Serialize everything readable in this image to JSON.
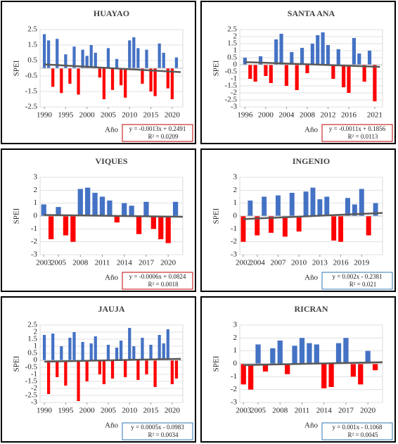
{
  "chart_data": [
    {
      "type": "bar",
      "title": "HUAYAO",
      "y_label": "SPEI",
      "x_label": "Año",
      "x": [
        1990,
        1991,
        1992,
        1993,
        1994,
        1995,
        1996,
        1997,
        1998,
        1999,
        2000,
        2001,
        2002,
        2003,
        2004,
        2005,
        2006,
        2007,
        2008,
        2009,
        2010,
        2011,
        2012,
        2013,
        2014,
        2015,
        2016,
        2017,
        2018,
        2019,
        2020,
        2021
      ],
      "values": [
        2.2,
        1.8,
        -1.2,
        1.9,
        -1.6,
        0.9,
        -1.0,
        1.4,
        -1.7,
        1.2,
        0.8,
        1.5,
        1.0,
        -0.6,
        -2.0,
        1.3,
        -1.4,
        0.6,
        -1.1,
        -1.9,
        1.8,
        2.0,
        1.3,
        -1.0,
        1.2,
        -1.5,
        -1.8,
        1.6,
        1.0,
        -1.3,
        -2.0,
        0.7
      ],
      "xlim": [
        1989,
        2022.5
      ],
      "xticks": [
        1990,
        1995,
        2000,
        2005,
        2010,
        2015,
        2020
      ],
      "ylim": [
        -2.5,
        2.5
      ],
      "yticks": [
        -2.5,
        -1.5,
        -0.5,
        0.5,
        1.5,
        2.5
      ],
      "grid": true,
      "color_positive": "#4472c4",
      "color_negative": "#ff0000",
      "trend": {
        "x": [
          1990,
          2022
        ],
        "values": [
          0.25,
          -0.25
        ],
        "color": "#595959"
      },
      "equation": "y = -0.0013x + 0.2491",
      "r2": "R² = 0.0209",
      "annotation_border": "#c00000"
    },
    {
      "type": "bar",
      "title": "SANTA ANA",
      "y_label": "SPEI",
      "x_label": "Año",
      "x": [
        1996,
        1997,
        1998,
        1999,
        2000,
        2001,
        2002,
        2003,
        2004,
        2005,
        2006,
        2007,
        2008,
        2009,
        2010,
        2011,
        2012,
        2013,
        2014,
        2015,
        2016,
        2017,
        2018,
        2019,
        2020,
        2021
      ],
      "values": [
        0.5,
        -1.0,
        -1.2,
        0.6,
        -0.8,
        -1.3,
        1.8,
        2.2,
        -1.5,
        0.9,
        -1.8,
        1.2,
        -0.6,
        1.5,
        2.1,
        2.3,
        1.4,
        -1.0,
        1.1,
        -1.6,
        -2.0,
        1.9,
        0.8,
        -1.2,
        1.0,
        -2.6
      ],
      "xlim": [
        1995,
        2022.5
      ],
      "xticks": [
        1996,
        2000,
        2004,
        2008,
        2012,
        2016,
        2021
      ],
      "ylim": [
        -3,
        2.5
      ],
      "yticks": [
        -3,
        -2.5,
        -2,
        -1.5,
        -1,
        -0.5,
        0,
        0.5,
        1,
        1.5,
        2,
        2.5
      ],
      "grid": true,
      "color_positive": "#4472c4",
      "color_negative": "#ff0000",
      "trend": {
        "x": [
          1996,
          2022
        ],
        "values": [
          0.19,
          -0.15
        ],
        "color": "#595959"
      },
      "equation": "y = -0.0011x + 0.1856",
      "r2": "R² = 0.0113",
      "annotation_border": "#c00000"
    },
    {
      "type": "bar",
      "title": "VIQUES",
      "y_label": "SPEI",
      "x_label": "Año",
      "x": [
        2003,
        2004,
        2005,
        2006,
        2007,
        2008,
        2009,
        2010,
        2011,
        2012,
        2013,
        2014,
        2015,
        2016,
        2017,
        2018,
        2019,
        2020,
        2021
      ],
      "values": [
        0.9,
        -1.8,
        0.7,
        -1.5,
        -2.0,
        2.1,
        2.2,
        1.8,
        1.5,
        1.2,
        -0.5,
        1.0,
        0.8,
        -1.4,
        1.1,
        -1.0,
        -1.8,
        -2.1,
        1.1
      ],
      "xlim": [
        2002.5,
        2022
      ],
      "xticks": [
        2003,
        2005,
        2008,
        2011,
        2014,
        2017,
        2020
      ],
      "ylim": [
        -3,
        3
      ],
      "yticks": [
        -3,
        -2,
        -1,
        0,
        1,
        2,
        3
      ],
      "grid": true,
      "color_positive": "#4472c4",
      "color_negative": "#ff0000",
      "trend": {
        "x": [
          2003,
          2022
        ],
        "values": [
          0.08,
          -0.06
        ],
        "color": "#595959"
      },
      "equation": "y = -0.0006x + 0.0824",
      "r2": "R² = 0.0018",
      "annotation_border": "#c00000"
    },
    {
      "type": "bar",
      "title": "INGENIO",
      "y_label": "SPEI",
      "x_label": "Año",
      "x": [
        2002,
        2003,
        2004,
        2005,
        2006,
        2007,
        2008,
        2009,
        2010,
        2011,
        2012,
        2013,
        2014,
        2015,
        2016,
        2017,
        2018,
        2019,
        2020,
        2021
      ],
      "values": [
        -2.0,
        1.2,
        -1.5,
        1.5,
        -1.3,
        1.6,
        -1.6,
        1.8,
        -1.2,
        1.9,
        2.2,
        1.3,
        1.5,
        -1.9,
        -2.0,
        1.4,
        0.9,
        2.1,
        -1.5,
        1.0
      ],
      "xlim": [
        2001.5,
        2022
      ],
      "xticks": [
        2002,
        2004,
        2007,
        2010,
        2013,
        2016,
        2019
      ],
      "ylim": [
        -3,
        3
      ],
      "yticks": [
        -3,
        -2,
        -1,
        0,
        1,
        2,
        3
      ],
      "grid": true,
      "color_positive": "#4472c4",
      "color_negative": "#ff0000",
      "trend": {
        "x": [
          2002,
          2022
        ],
        "values": [
          -0.24,
          0.24
        ],
        "color": "#595959"
      },
      "equation": "y = 0.002x - 0.2381",
      "r2": "R² = 0.021",
      "annotation_border": "#2e75b6"
    },
    {
      "type": "bar",
      "title": "JAUJA",
      "y_label": "SPEI",
      "x_label": "Año",
      "x": [
        1990,
        1991,
        1992,
        1993,
        1994,
        1995,
        1996,
        1997,
        1998,
        1999,
        2000,
        2001,
        2002,
        2003,
        2004,
        2005,
        2006,
        2007,
        2008,
        2009,
        2010,
        2011,
        2012,
        2013,
        2014,
        2015,
        2016,
        2017,
        2018,
        2019,
        2020,
        2021
      ],
      "values": [
        1.8,
        -2.4,
        1.9,
        -1.2,
        1.0,
        -1.8,
        1.6,
        2.0,
        -2.9,
        1.3,
        -1.5,
        1.2,
        1.7,
        -1.0,
        -1.7,
        1.1,
        -1.3,
        0.9,
        1.4,
        -1.2,
        2.3,
        1.0,
        -1.4,
        1.6,
        -1.0,
        1.1,
        -1.9,
        1.8,
        1.2,
        2.2,
        -1.7,
        -1.3
      ],
      "xlim": [
        1989,
        2022.5
      ],
      "xticks": [
        1990,
        1995,
        2000,
        2005,
        2010,
        2015,
        2020
      ],
      "ylim": [
        -3,
        2.5
      ],
      "yticks": [
        -3,
        -2.5,
        -2,
        -1.5,
        -1,
        -0.5,
        0,
        0.5,
        1,
        1.5,
        2,
        2.5
      ],
      "grid": true,
      "color_positive": "#4472c4",
      "color_negative": "#ff0000",
      "trend": {
        "x": [
          1990,
          2022
        ],
        "values": [
          -0.1,
          0.1
        ],
        "color": "#595959"
      },
      "equation": "y = 0.0005x - 0.0983",
      "r2": "R² = 0.0034",
      "annotation_border": "#2e75b6"
    },
    {
      "type": "bar",
      "title": "RICRAN",
      "y_label": "SPEI",
      "x_label": "Año",
      "x": [
        2003,
        2004,
        2005,
        2006,
        2007,
        2008,
        2009,
        2010,
        2011,
        2012,
        2013,
        2014,
        2015,
        2016,
        2017,
        2018,
        2019,
        2020,
        2021
      ],
      "values": [
        -1.6,
        -2.0,
        1.5,
        -0.6,
        1.2,
        1.8,
        -0.8,
        1.4,
        2.0,
        1.6,
        1.5,
        -1.9,
        -1.8,
        1.6,
        2.0,
        -1.0,
        -1.6,
        1.0,
        -0.5
      ],
      "xlim": [
        2002.5,
        2022
      ],
      "xticks": [
        2003,
        2005,
        2008,
        2011,
        2014,
        2017,
        2020
      ],
      "ylim": [
        -3,
        3
      ],
      "yticks": [
        -3,
        -2,
        -1,
        0,
        1,
        2,
        3
      ],
      "grid": true,
      "color_positive": "#4472c4",
      "color_negative": "#ff0000",
      "trend": {
        "x": [
          2003,
          2022
        ],
        "values": [
          -0.1,
          0.12
        ],
        "color": "#595959"
      },
      "equation": "y = 0.001x - 0.1068",
      "r2": "R² = 0.0045",
      "annotation_border": "#2e75b6"
    }
  ]
}
